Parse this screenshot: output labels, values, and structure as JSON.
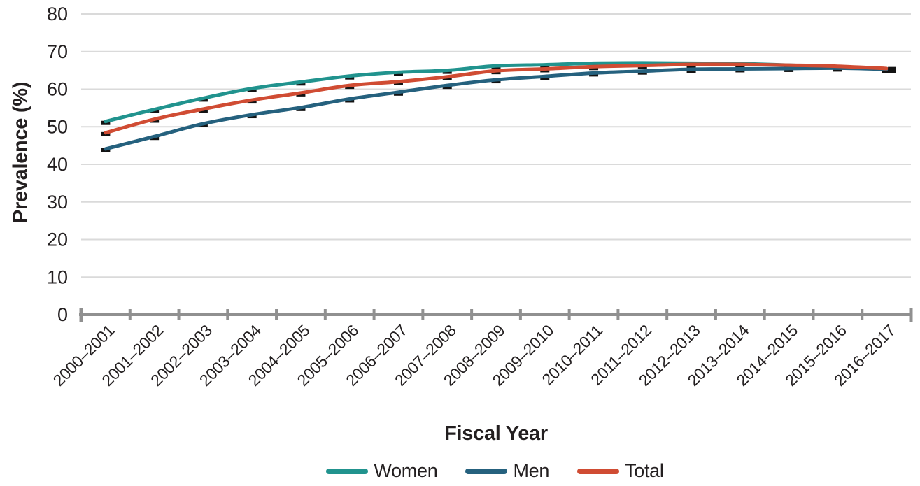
{
  "chart_data": {
    "type": "line",
    "title": "",
    "xlabel": "Fiscal Year",
    "ylabel": "Prevalence (%)",
    "ylim": [
      0,
      80
    ],
    "yticks": [
      0,
      10,
      20,
      30,
      40,
      50,
      60,
      70,
      80
    ],
    "grid": "horizontal",
    "legend_position": "bottom",
    "marker": {
      "shape": "dash",
      "color": "#131313"
    },
    "categories": [
      "2000–2001",
      "2001–2002",
      "2002–2003",
      "2003–2004",
      "2004–2005",
      "2005–2006",
      "2006–2007",
      "2007–2008",
      "2008–2009",
      "2009–2010",
      "2010–2011",
      "2011–2012",
      "2012–2013",
      "2013–2014",
      "2014–2015",
      "2015–2016",
      "2016–2017"
    ],
    "series": [
      {
        "name": "Women",
        "color": "#21938E",
        "values": [
          51.4,
          54.6,
          57.6,
          60.2,
          61.9,
          63.5,
          64.5,
          65.0,
          66.2,
          66.5,
          66.9,
          67.0,
          66.9,
          66.8,
          66.4,
          65.9,
          65.3
        ]
      },
      {
        "name": "Men",
        "color": "#25617E",
        "values": [
          44.1,
          47.4,
          50.8,
          53.2,
          55.1,
          57.4,
          59.2,
          61.0,
          62.5,
          63.4,
          64.3,
          64.8,
          65.3,
          65.4,
          65.5,
          65.6,
          65.3
        ]
      },
      {
        "name": "Total",
        "color": "#D04C33",
        "values": [
          48.4,
          52.0,
          54.7,
          57.1,
          59.0,
          61.0,
          62.0,
          63.3,
          64.9,
          65.4,
          66.0,
          66.3,
          66.6,
          66.6,
          66.4,
          66.1,
          65.5
        ]
      }
    ],
    "colors": {
      "gridline": "#DADADA",
      "axis": "#909090",
      "text": "#231F20"
    }
  }
}
